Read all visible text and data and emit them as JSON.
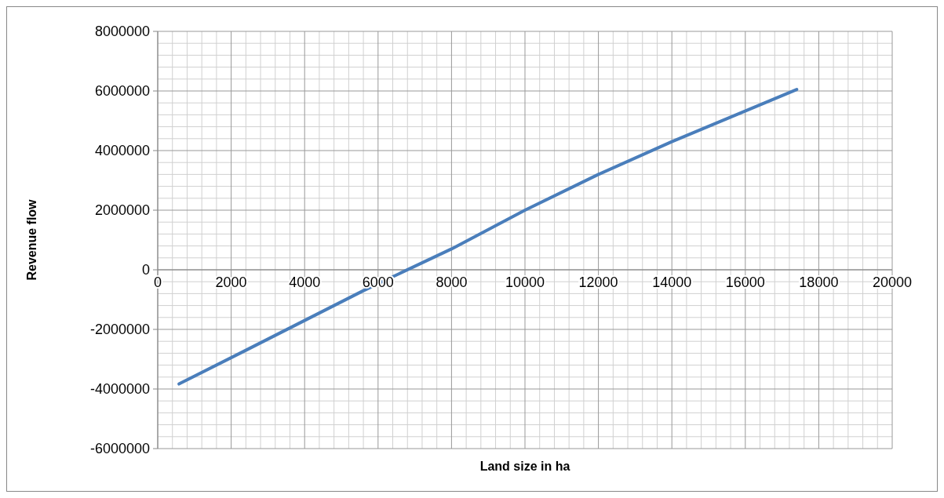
{
  "chart_data": {
    "type": "line",
    "xlabel": "Land size in ha",
    "ylabel": "Revenue flow",
    "x": [
      580,
      2400,
      4000,
      5600,
      8000,
      10000,
      12000,
      14000,
      17400
    ],
    "series": [
      {
        "color": "#4a7ebb",
        "values": [
          -3830000,
          -2700000,
          -1700000,
          -700000,
          700000,
          2000000,
          3200000,
          4300000,
          6050000
        ]
      }
    ],
    "xlim": [
      0,
      20000
    ],
    "xticks": [
      0,
      2000,
      4000,
      6000,
      8000,
      10000,
      12000,
      14000,
      16000,
      18000,
      20000
    ],
    "ylim": [
      -6000000,
      8000000
    ],
    "yticks": [
      -6000000,
      -4000000,
      -2000000,
      0,
      2000000,
      4000000,
      6000000,
      8000000
    ],
    "grid": true,
    "marker": "none",
    "line_style": "solid"
  }
}
